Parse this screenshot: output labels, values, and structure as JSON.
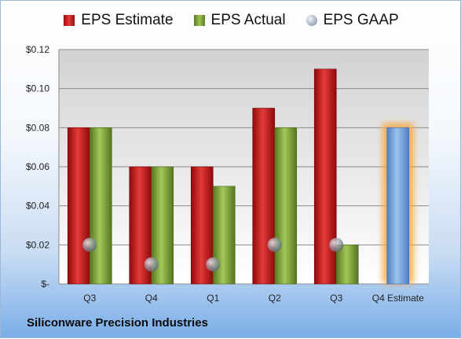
{
  "chart_data": {
    "type": "bar",
    "categories": [
      "Q3",
      "Q4",
      "Q1",
      "Q2",
      "Q3",
      "Q4 Estimate"
    ],
    "series": [
      {
        "name": "EPS Estimate",
        "values": [
          0.08,
          0.06,
          0.06,
          0.09,
          0.11,
          null
        ]
      },
      {
        "name": "EPS Actual",
        "values": [
          0.08,
          0.06,
          0.05,
          0.08,
          0.02,
          0.08
        ]
      },
      {
        "name": "EPS GAAP",
        "values": [
          0.02,
          0.01,
          0.01,
          0.02,
          0.02,
          null
        ]
      }
    ],
    "highlighted_category": "Q4 Estimate",
    "ylim": [
      0,
      0.12
    ],
    "yticks": [
      0,
      0.02,
      0.04,
      0.06,
      0.08,
      0.1,
      0.12
    ],
    "ytick_labels": [
      "$-",
      "$0.02",
      "$0.04",
      "$0.06",
      "$0.08",
      "$0.10",
      "$0.12"
    ],
    "grid": true,
    "legend_position": "top",
    "colors": {
      "estimate": "#c81e1e",
      "actual": "#7da33a",
      "forecast": "#6e9fd8",
      "forecast_glow": "#f5a742",
      "gaap": "#8a93a3",
      "plot_top": "#d4d4d4",
      "plot_bottom": "#ffffff"
    }
  },
  "legend": [
    {
      "label": "EPS Estimate",
      "icon": "red-square"
    },
    {
      "label": "EPS Actual",
      "icon": "green-square"
    },
    {
      "label": "EPS GAAP",
      "icon": "gray-sphere"
    }
  ],
  "footer": {
    "company": "Siliconware Precision Industries"
  }
}
